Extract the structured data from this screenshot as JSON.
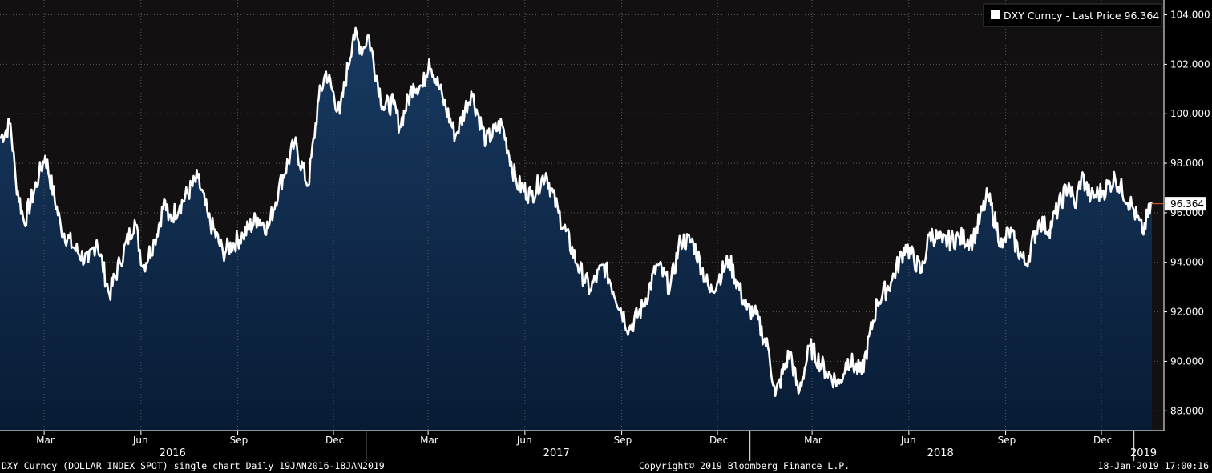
{
  "colors": {
    "background": "#000000",
    "plot_background": "#121010",
    "area_top": "#183a62",
    "area_bottom": "#081b34",
    "line": "#ffffff",
    "grid": "#5a5a5a",
    "last_marker": "#e8642a"
  },
  "legend": {
    "series": "DXY Curncy",
    "separator": " - ",
    "label": "Last Price",
    "value": "96.364"
  },
  "last_price_tag": "96.364",
  "footer": {
    "left": "DXY Curncy (DOLLAR INDEX SPOT) single chart  Daily 19JAN2016-18JAN2019",
    "center": "Copyright© 2019 Bloomberg Finance L.P.",
    "right": "18-Jan-2019 17:00:16"
  },
  "chart_data": {
    "type": "area",
    "series": [
      {
        "name": "DXY Curncy",
        "label": "Last Price"
      }
    ],
    "y_tick_labels": [
      "88.000",
      "90.000",
      "92.000",
      "94.000",
      "96.000",
      "98.000",
      "100.000",
      "102.000",
      "104.000"
    ],
    "ylim": [
      87.2,
      104.6
    ],
    "x_range": [
      "2016-01-19",
      "2019-01-18"
    ],
    "month_ticks": [
      {
        "date": "2016-03-01",
        "label": "Mar"
      },
      {
        "date": "2016-06-01",
        "label": "Jun"
      },
      {
        "date": "2016-09-01",
        "label": "Sep"
      },
      {
        "date": "2016-12-01",
        "label": "Dec"
      },
      {
        "date": "2017-03-01",
        "label": "Mar"
      },
      {
        "date": "2017-06-01",
        "label": "Jun"
      },
      {
        "date": "2017-09-01",
        "label": "Sep"
      },
      {
        "date": "2017-12-01",
        "label": "Dec"
      },
      {
        "date": "2018-03-01",
        "label": "Mar"
      },
      {
        "date": "2018-06-01",
        "label": "Jun"
      },
      {
        "date": "2018-09-01",
        "label": "Sep"
      },
      {
        "date": "2018-12-01",
        "label": "Dec"
      }
    ],
    "year_labels": [
      {
        "date": "2016-07-01",
        "label": "2016"
      },
      {
        "date": "2017-07-01",
        "label": "2017"
      },
      {
        "date": "2018-07-01",
        "label": "2018"
      },
      {
        "date": "2019-01-10",
        "label": "2019"
      }
    ],
    "year_separators": [
      "2017-01-01",
      "2018-01-01",
      "2019-01-01"
    ],
    "points": [
      [
        "2016-01-19",
        99.0
      ],
      [
        "2016-01-29",
        99.6
      ],
      [
        "2016-02-03",
        97.3
      ],
      [
        "2016-02-11",
        95.6
      ],
      [
        "2016-02-25",
        97.5
      ],
      [
        "2016-03-02",
        98.3
      ],
      [
        "2016-03-17",
        95.4
      ],
      [
        "2016-03-29",
        94.6
      ],
      [
        "2016-04-12",
        94.0
      ],
      [
        "2016-04-20",
        94.9
      ],
      [
        "2016-05-02",
        92.7
      ],
      [
        "2016-05-12",
        94.0
      ],
      [
        "2016-05-26",
        95.7
      ],
      [
        "2016-06-03",
        93.8
      ],
      [
        "2016-06-14",
        94.9
      ],
      [
        "2016-06-24",
        96.5
      ],
      [
        "2016-06-27",
        95.7
      ],
      [
        "2016-07-08",
        96.3
      ],
      [
        "2016-07-25",
        97.4
      ],
      [
        "2016-08-04",
        95.8
      ],
      [
        "2016-08-18",
        94.4
      ],
      [
        "2016-09-06",
        95.1
      ],
      [
        "2016-09-20",
        95.8
      ],
      [
        "2016-09-30",
        95.4
      ],
      [
        "2016-10-10",
        97.0
      ],
      [
        "2016-10-25",
        98.8
      ],
      [
        "2016-11-07",
        97.1
      ],
      [
        "2016-11-17",
        100.6
      ],
      [
        "2016-11-24",
        101.7
      ],
      [
        "2016-12-07",
        100.0
      ],
      [
        "2016-12-20",
        103.2
      ],
      [
        "2016-12-29",
        102.6
      ],
      [
        "2017-01-03",
        103.2
      ],
      [
        "2017-01-17",
        100.3
      ],
      [
        "2017-01-27",
        100.4
      ],
      [
        "2017-02-02",
        99.5
      ],
      [
        "2017-02-15",
        101.2
      ],
      [
        "2017-02-24",
        101.1
      ],
      [
        "2017-03-02",
        102.2
      ],
      [
        "2017-03-15",
        100.6
      ],
      [
        "2017-03-27",
        99.1
      ],
      [
        "2017-04-11",
        100.9
      ],
      [
        "2017-04-25",
        98.9
      ],
      [
        "2017-05-10",
        99.6
      ],
      [
        "2017-05-24",
        97.2
      ],
      [
        "2017-06-07",
        96.7
      ],
      [
        "2017-06-21",
        97.6
      ],
      [
        "2017-07-03",
        96.0
      ],
      [
        "2017-07-21",
        93.9
      ],
      [
        "2017-08-02",
        92.9
      ],
      [
        "2017-08-15",
        93.9
      ],
      [
        "2017-09-08",
        91.3
      ],
      [
        "2017-09-21",
        92.2
      ],
      [
        "2017-10-05",
        93.9
      ],
      [
        "2017-10-17",
        93.0
      ],
      [
        "2017-10-27",
        94.9
      ],
      [
        "2017-11-08",
        94.8
      ],
      [
        "2017-11-24",
        92.8
      ],
      [
        "2017-12-12",
        94.1
      ],
      [
        "2017-12-29",
        92.1
      ],
      [
        "2018-01-05",
        92.0
      ],
      [
        "2018-01-19",
        90.4
      ],
      [
        "2018-01-25",
        88.6
      ],
      [
        "2018-02-08",
        90.4
      ],
      [
        "2018-02-16",
        88.7
      ],
      [
        "2018-02-27",
        90.6
      ],
      [
        "2018-03-14",
        89.6
      ],
      [
        "2018-03-27",
        89.1
      ],
      [
        "2018-04-04",
        90.1
      ],
      [
        "2018-04-17",
        89.5
      ],
      [
        "2018-05-02",
        92.4
      ],
      [
        "2018-05-15",
        93.2
      ],
      [
        "2018-05-29",
        94.7
      ],
      [
        "2018-06-13",
        93.6
      ],
      [
        "2018-06-21",
        95.2
      ],
      [
        "2018-07-03",
        94.8
      ],
      [
        "2018-07-19",
        95.0
      ],
      [
        "2018-08-01",
        94.9
      ],
      [
        "2018-08-15",
        96.7
      ],
      [
        "2018-08-29",
        94.6
      ],
      [
        "2018-09-04",
        95.3
      ],
      [
        "2018-09-20",
        93.9
      ],
      [
        "2018-10-03",
        95.7
      ],
      [
        "2018-10-12",
        95.3
      ],
      [
        "2018-10-31",
        97.2
      ],
      [
        "2018-11-06",
        96.2
      ],
      [
        "2018-11-12",
        97.5
      ],
      [
        "2018-11-21",
        96.6
      ],
      [
        "2018-12-03",
        96.9
      ],
      [
        "2018-12-14",
        97.4
      ],
      [
        "2018-12-31",
        96.2
      ],
      [
        "2019-01-09",
        95.2
      ],
      [
        "2019-01-18",
        96.364
      ]
    ]
  }
}
